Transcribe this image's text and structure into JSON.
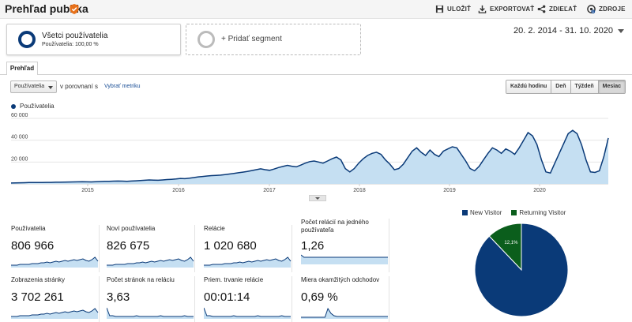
{
  "header": {
    "title": "Prehľad publika",
    "buttons": [
      {
        "label": "ULOŽIŤ",
        "icon": "save-icon"
      },
      {
        "label": "EXPORTOVAŤ",
        "icon": "download-icon"
      },
      {
        "label": "ZDIEĽAŤ",
        "icon": "share-icon"
      },
      {
        "label": "ZDROJE",
        "icon": "resources-icon",
        "badge": "1"
      }
    ]
  },
  "segments": {
    "active": {
      "name": "Všetci používatelia",
      "sub": "Používatelia: 100,00 %"
    },
    "add": {
      "label": "+ Pridať segment"
    }
  },
  "date_range": "20. 2. 2014 - 31. 10. 2020",
  "tab": "Prehľad",
  "controls": {
    "metric_select": "Používatelia",
    "compare_text": "v porovnaní s",
    "pick_metric": "Vybrať metriku",
    "periods": [
      "Každú hodinu",
      "Deň",
      "Týždeň",
      "Mesiac"
    ],
    "active_period": "Mesiac"
  },
  "main_chart_legend": "Používatelia",
  "chart_data": {
    "type": "area",
    "series": [
      {
        "name": "Používatelia",
        "color": "#0a3a78",
        "fill": "#c5dff2"
      }
    ],
    "y_ticks": [
      "60 000",
      "40 000",
      "20 000"
    ],
    "ylim": [
      0,
      60000
    ],
    "x_ticks": [
      "2015",
      "2016",
      "2017",
      "2018",
      "2019",
      "2020"
    ],
    "values": [
      800,
      900,
      1000,
      1100,
      1200,
      1200,
      1300,
      1300,
      1400,
      1400,
      1500,
      1500,
      1600,
      1700,
      1800,
      1900,
      2000,
      1900,
      1800,
      2000,
      2200,
      2300,
      2400,
      2500,
      2600,
      2500,
      2400,
      2600,
      2800,
      3000,
      3300,
      3600,
      3500,
      3300,
      3600,
      4000,
      4200,
      4500,
      5000,
      4800,
      5200,
      5800,
      6400,
      6800,
      7200,
      7600,
      7800,
      8000,
      8500,
      9000,
      9600,
      10200,
      10800,
      11400,
      12200,
      13000,
      13800,
      13000,
      12400,
      13600,
      15000,
      16000,
      17000,
      16200,
      15600,
      17200,
      19000,
      20400,
      21000,
      20000,
      19000,
      21000,
      23000,
      24600,
      22000,
      14000,
      11000,
      14000,
      19000,
      23000,
      26000,
      28000,
      29000,
      27000,
      22000,
      18000,
      13000,
      14000,
      18000,
      24000,
      30000,
      33000,
      29000,
      26000,
      31000,
      27000,
      25000,
      30000,
      32000,
      34000,
      33000,
      27000,
      21000,
      14000,
      12000,
      16000,
      22000,
      28000,
      33000,
      31000,
      28000,
      32000,
      30000,
      27000,
      33000,
      40000,
      47000,
      44000,
      36000,
      22000,
      11000,
      10000,
      19000,
      28000,
      37000,
      46000,
      49000,
      46000,
      36000,
      22000,
      11000,
      10500,
      12000,
      25000,
      42000
    ]
  },
  "kpis": [
    {
      "label": "Používatelia",
      "value": "806 966"
    },
    {
      "label": "Noví používatelia",
      "value": "826 675"
    },
    {
      "label": "Relácie",
      "value": "1 020 680"
    },
    {
      "label": "Počet relácií na jedného používateľa",
      "value": "1,26"
    },
    {
      "label": "Zobrazenia stránky",
      "value": "3 702 261"
    },
    {
      "label": "Počet stránok na reláciu",
      "value": "3,63"
    },
    {
      "label": "Priem. trvanie relácie",
      "value": "00:01:14"
    },
    {
      "label": "Miera okamžitých odchodov",
      "value": "0,69 %"
    }
  ],
  "pie": {
    "legend": [
      {
        "name": "New Visitor",
        "color": "#0a3a78",
        "value": 87.9,
        "label": "87,9%"
      },
      {
        "name": "Returning Visitor",
        "color": "#0b5e1c",
        "value": 12.1,
        "label": "12,1%"
      }
    ]
  },
  "colors": {
    "accent": "#0a3a78",
    "area": "#c5dff2",
    "verified": "#e8711a"
  }
}
